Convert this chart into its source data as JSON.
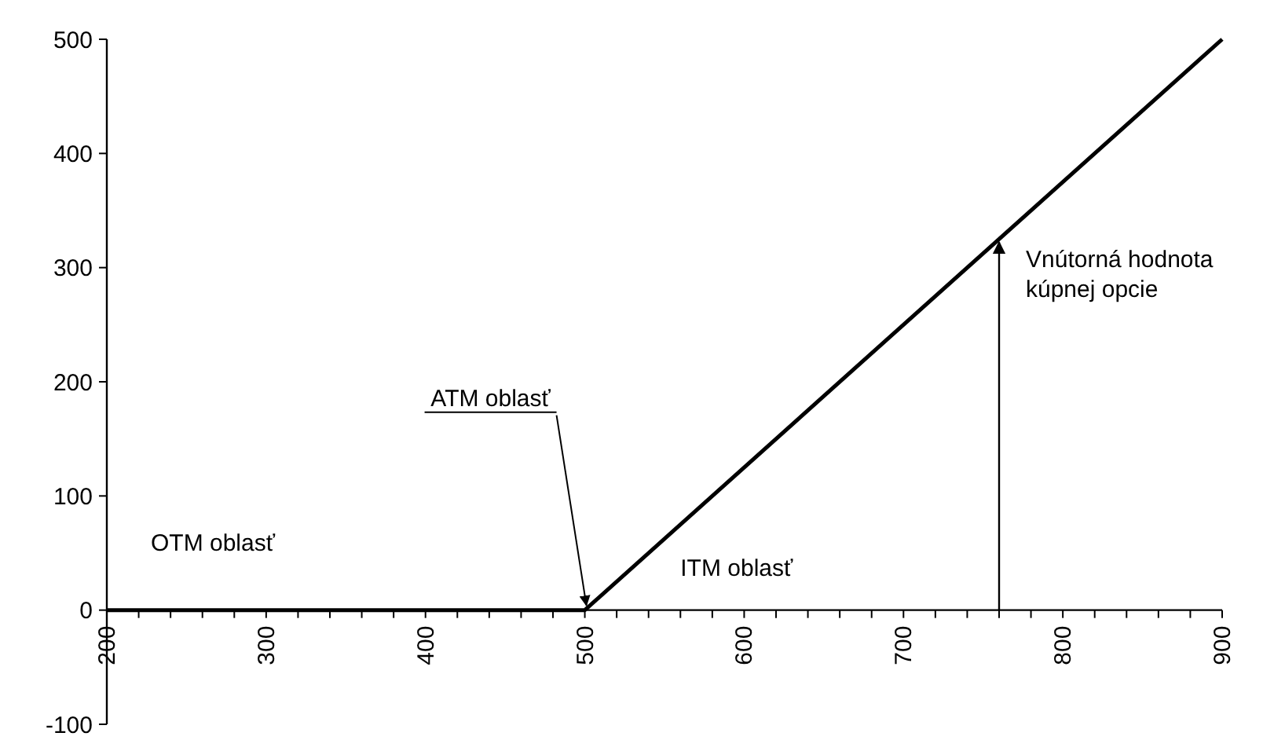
{
  "chart_data": {
    "type": "line",
    "x": [
      200,
      500,
      900
    ],
    "series": [
      {
        "color": "#000000",
        "values": [
          0,
          0,
          500
        ]
      }
    ],
    "xlim": [
      200,
      900
    ],
    "ylim": [
      -100,
      500
    ],
    "xticks": [
      200,
      {
        "value": 220,
        "label": null
      },
      {
        "value": 240,
        "label": null
      },
      {
        "value": 260,
        "label": null
      },
      {
        "value": 280,
        "label": null
      },
      300,
      {
        "value": 320,
        "label": null
      },
      {
        "value": 340,
        "label": null
      },
      {
        "value": 360,
        "label": null
      },
      {
        "value": 380,
        "label": null
      },
      400,
      {
        "value": 420,
        "label": null
      },
      {
        "value": 440,
        "label": null
      },
      {
        "value": 460,
        "label": null
      },
      {
        "value": 480,
        "label": null
      },
      500,
      {
        "value": 520,
        "label": null
      },
      {
        "value": 540,
        "label": null
      },
      {
        "value": 560,
        "label": null
      },
      {
        "value": 580,
        "label": null
      },
      600,
      {
        "value": 620,
        "label": null
      },
      {
        "value": 640,
        "label": null
      },
      {
        "value": 660,
        "label": null
      },
      {
        "value": 680,
        "label": null
      },
      700,
      {
        "value": 720,
        "label": null
      },
      {
        "value": 740,
        "label": null
      },
      {
        "value": 760,
        "label": null
      },
      {
        "value": 780,
        "label": null
      },
      800,
      {
        "value": 820,
        "label": null
      },
      {
        "value": 840,
        "label": null
      },
      {
        "value": 860,
        "label": null
      },
      {
        "value": 880,
        "label": null
      },
      900
    ],
    "yticks": [
      -100,
      0,
      100,
      200,
      300,
      400,
      500
    ],
    "grid": false,
    "marker": "none",
    "line_style": "solid",
    "annotations": [
      "OTM oblasť",
      "ITM oblasť",
      {
        "text": "ATM oblasť",
        "x": 500,
        "y": 0
      },
      {
        "text": "Vnútorná hodnota\nkúpnej opcie",
        "x": 760,
        "y": 325
      }
    ]
  }
}
